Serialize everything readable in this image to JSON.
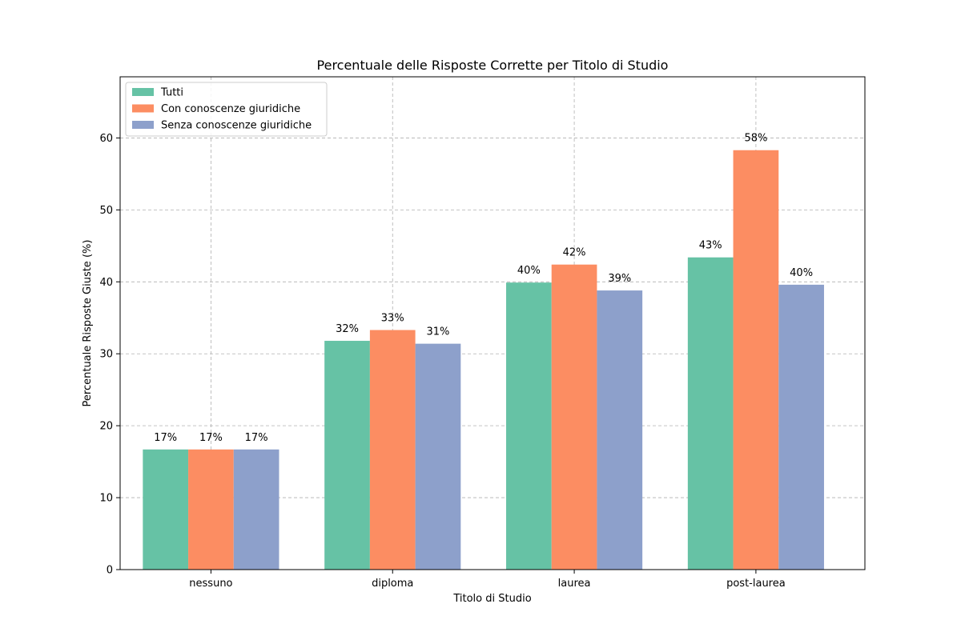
{
  "chart_data": {
    "type": "bar",
    "title": "Percentuale delle Risposte Corrette per Titolo di Studio",
    "xlabel": "Titolo di Studio",
    "ylabel": "Percentuale Risposte Giuste (%)",
    "categories": [
      "nessuno",
      "diploma",
      "laurea",
      "post-laurea"
    ],
    "ylim": [
      0,
      68.5
    ],
    "yticks": [
      0,
      10,
      20,
      30,
      40,
      50,
      60
    ],
    "grid": true,
    "legend_position": "top-left",
    "series": [
      {
        "name": "Tutti",
        "color": "#66c2a5",
        "values": [
          16.7,
          31.8,
          39.9,
          43.4
        ],
        "labels": [
          "17%",
          "32%",
          "40%",
          "43%"
        ]
      },
      {
        "name": "Con conoscenze giuridiche",
        "color": "#fc8d62",
        "values": [
          16.7,
          33.3,
          42.4,
          58.3
        ],
        "labels": [
          "17%",
          "33%",
          "42%",
          "58%"
        ]
      },
      {
        "name": "Senza conoscenze giuridiche",
        "color": "#8da0cb",
        "values": [
          16.7,
          31.4,
          38.8,
          39.6
        ],
        "labels": [
          "17%",
          "31%",
          "39%",
          "40%"
        ]
      }
    ]
  }
}
